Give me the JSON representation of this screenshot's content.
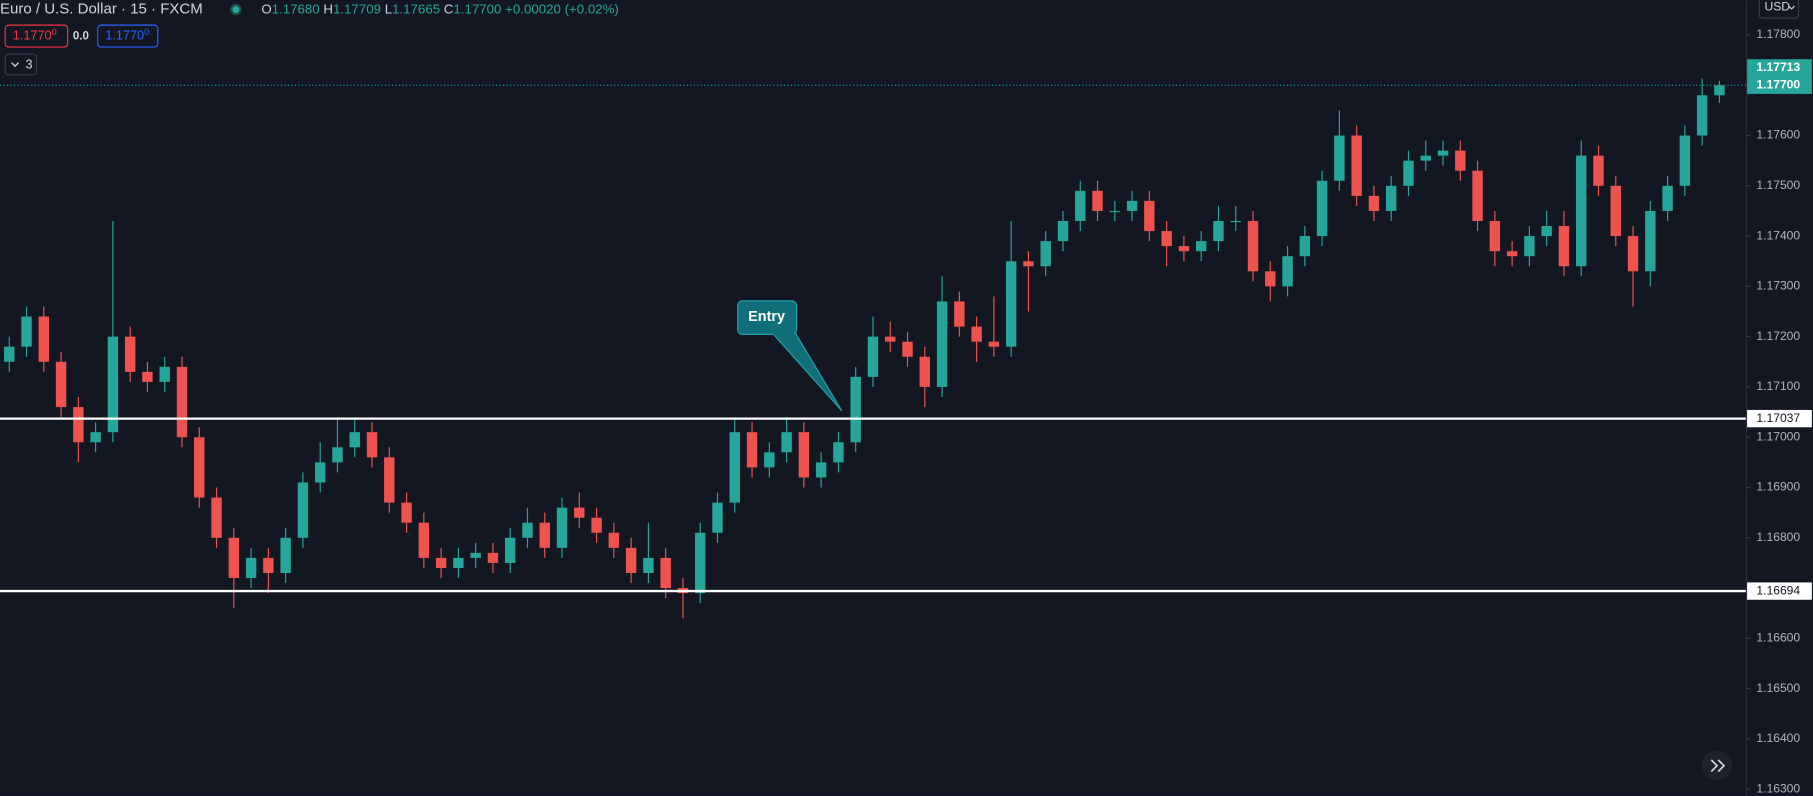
{
  "chart_data": {
    "type": "candlestick",
    "header": {
      "title": "Euro / U.S. Dollar · 15 · FXCM",
      "o": "O",
      "open": "1.17680",
      "h": "H",
      "high": "1.17709",
      "l": "L",
      "low": "1.17665",
      "c": "C",
      "close": "1.17700",
      "change": "+0.00020 (+0.02%)"
    },
    "ui": {
      "sell": "1.1770",
      "sell_pip": "0",
      "spread": "0.0",
      "buy": "1.1770",
      "buy_pip": "0",
      "indicators": "3",
      "currency": "USD"
    },
    "annotation": "Entry",
    "up_color": "#26a69a",
    "down_color": "#ef5350",
    "ylim": [
      1.16287,
      1.17869
    ],
    "yticks": [
      {
        "value": 1.163,
        "label": "1.16300"
      },
      {
        "value": 1.164,
        "label": "1.16400"
      },
      {
        "value": 1.165,
        "label": "1.16500"
      },
      {
        "value": 1.166,
        "label": "1.16600"
      },
      {
        "value": 1.167,
        "label": "1.16700"
      },
      {
        "value": 1.168,
        "label": "1.16800"
      },
      {
        "value": 1.169,
        "label": "1.16900"
      },
      {
        "value": 1.17,
        "label": "1.17000"
      },
      {
        "value": 1.171,
        "label": "1.17100"
      },
      {
        "value": 1.172,
        "label": "1.17200"
      },
      {
        "value": 1.173,
        "label": "1.17300"
      },
      {
        "value": 1.174,
        "label": "1.17400"
      },
      {
        "value": 1.175,
        "label": "1.17500"
      },
      {
        "value": 1.176,
        "label": "1.17600"
      },
      {
        "value": 1.177,
        "label": "1.17700"
      },
      {
        "value": 1.178,
        "label": "1.17800"
      }
    ],
    "hlines": [
      1.17037,
      1.16694
    ],
    "price_tags": [
      {
        "value": 1.17713,
        "label": "1.17713"
      },
      {
        "value": 1.177,
        "label": "1.17700"
      }
    ],
    "open": [
      1.1715,
      1.1718,
      1.1724,
      1.1715,
      1.1706,
      1.1699,
      1.1701,
      1.172,
      1.1713,
      1.1711,
      1.1714,
      1.17,
      1.1688,
      1.168,
      1.1672,
      1.1676,
      1.1673,
      1.168,
      1.1691,
      1.1695,
      1.1698,
      1.1701,
      1.1696,
      1.1687,
      1.1683,
      1.1676,
      1.1674,
      1.1676,
      1.1677,
      1.1675,
      1.168,
      1.1683,
      1.1678,
      1.1686,
      1.1684,
      1.1681,
      1.1678,
      1.1673,
      1.1676,
      1.167,
      1.1669,
      1.1681,
      1.1687,
      1.1701,
      1.1694,
      1.1697,
      1.1701,
      1.1692,
      1.1695,
      1.1699,
      1.1712,
      1.172,
      1.1719,
      1.1716,
      1.171,
      1.1727,
      1.1722,
      1.1719,
      1.1718,
      1.1735,
      1.1734,
      1.1739,
      1.1743,
      1.1749,
      1.1745,
      1.1745,
      1.1747,
      1.1741,
      1.1738,
      1.1737,
      1.1739,
      1.1743,
      1.1743,
      1.1733,
      1.173,
      1.1736,
      1.174,
      1.1751,
      1.176,
      1.1748,
      1.1745,
      1.175,
      1.1755,
      1.1756,
      1.1757,
      1.1753,
      1.1743,
      1.1737,
      1.1736,
      1.174,
      1.1742,
      1.1734,
      1.1756,
      1.175,
      1.174,
      1.1733,
      1.1745,
      1.175,
      1.176,
      1.1768
    ],
    "high": [
      1.172,
      1.1726,
      1.1726,
      1.1717,
      1.1708,
      1.1703,
      1.1743,
      1.1722,
      1.1715,
      1.1716,
      1.1716,
      1.1702,
      1.169,
      1.1682,
      1.1678,
      1.1678,
      1.1682,
      1.1693,
      1.1699,
      1.1704,
      1.1704,
      1.1703,
      1.1698,
      1.1689,
      1.1685,
      1.1678,
      1.1678,
      1.1679,
      1.1679,
      1.1682,
      1.1686,
      1.1685,
      1.1688,
      1.1689,
      1.1686,
      1.1683,
      1.168,
      1.1683,
      1.1678,
      1.1672,
      1.1683,
      1.1689,
      1.1704,
      1.1703,
      1.1699,
      1.1704,
      1.1703,
      1.1697,
      1.1701,
      1.1714,
      1.1724,
      1.1723,
      1.1721,
      1.1718,
      1.1732,
      1.1729,
      1.1724,
      1.1728,
      1.1743,
      1.1737,
      1.1741,
      1.1745,
      1.1751,
      1.1751,
      1.1747,
      1.1749,
      1.1749,
      1.1743,
      1.174,
      1.1741,
      1.1746,
      1.1746,
      1.1745,
      1.1735,
      1.1738,
      1.1742,
      1.1753,
      1.1765,
      1.1762,
      1.175,
      1.1752,
      1.1757,
      1.1759,
      1.1759,
      1.1759,
      1.1755,
      1.1745,
      1.1739,
      1.1742,
      1.1745,
      1.1745,
      1.1759,
      1.1758,
      1.1752,
      1.1742,
      1.1747,
      1.1752,
      1.1762,
      1.17713,
      1.17709
    ],
    "low": [
      1.1713,
      1.1716,
      1.1713,
      1.1704,
      1.1695,
      1.1697,
      1.1699,
      1.1711,
      1.1709,
      1.1709,
      1.1698,
      1.1686,
      1.1678,
      1.1666,
      1.167,
      1.1669,
      1.1671,
      1.1678,
      1.1689,
      1.1693,
      1.1696,
      1.1694,
      1.1685,
      1.1681,
      1.1674,
      1.1672,
      1.1672,
      1.1674,
      1.1673,
      1.1673,
      1.1678,
      1.1676,
      1.1676,
      1.1682,
      1.1679,
      1.1676,
      1.1671,
      1.1671,
      1.1668,
      1.1664,
      1.1667,
      1.1679,
      1.1685,
      1.1692,
      1.1692,
      1.1695,
      1.169,
      1.169,
      1.1693,
      1.1697,
      1.171,
      1.1717,
      1.1714,
      1.1706,
      1.1708,
      1.172,
      1.1715,
      1.1716,
      1.1716,
      1.1725,
      1.1732,
      1.1737,
      1.1741,
      1.1743,
      1.1743,
      1.1743,
      1.1739,
      1.1734,
      1.1735,
      1.1735,
      1.1737,
      1.1741,
      1.1731,
      1.1727,
      1.1728,
      1.1734,
      1.1738,
      1.1749,
      1.1746,
      1.1743,
      1.1743,
      1.1748,
      1.1753,
      1.1754,
      1.1751,
      1.1741,
      1.1734,
      1.1734,
      1.1734,
      1.1738,
      1.1732,
      1.1732,
      1.1748,
      1.1738,
      1.1726,
      1.173,
      1.1743,
      1.1748,
      1.1758,
      1.17665
    ],
    "close": [
      1.1718,
      1.1724,
      1.1715,
      1.1706,
      1.1699,
      1.1701,
      1.172,
      1.1713,
      1.1711,
      1.1714,
      1.17,
      1.1688,
      1.168,
      1.1672,
      1.1676,
      1.1673,
      1.168,
      1.1691,
      1.1695,
      1.1698,
      1.1701,
      1.1696,
      1.1687,
      1.1683,
      1.1676,
      1.1674,
      1.1676,
      1.1677,
      1.1675,
      1.168,
      1.1683,
      1.1678,
      1.1686,
      1.1684,
      1.1681,
      1.1678,
      1.1673,
      1.1676,
      1.167,
      1.1669,
      1.1681,
      1.1687,
      1.1701,
      1.1694,
      1.1697,
      1.1701,
      1.1692,
      1.1695,
      1.1699,
      1.1712,
      1.172,
      1.1719,
      1.1716,
      1.171,
      1.1727,
      1.1722,
      1.1719,
      1.1718,
      1.1735,
      1.1734,
      1.1739,
      1.1743,
      1.1749,
      1.1745,
      1.1745,
      1.1747,
      1.1741,
      1.1738,
      1.1737,
      1.1739,
      1.1743,
      1.1743,
      1.1733,
      1.173,
      1.1736,
      1.174,
      1.1751,
      1.176,
      1.1748,
      1.1745,
      1.175,
      1.1755,
      1.1756,
      1.1757,
      1.1753,
      1.1743,
      1.1737,
      1.1736,
      1.174,
      1.1742,
      1.1734,
      1.1756,
      1.175,
      1.174,
      1.1733,
      1.1745,
      1.175,
      1.176,
      1.1768,
      1.177
    ]
  }
}
